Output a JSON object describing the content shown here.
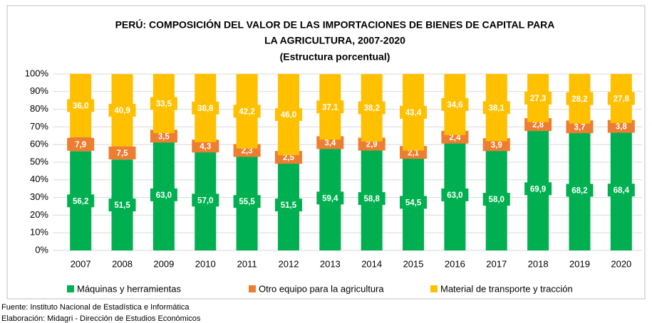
{
  "chart_data": {
    "type": "stacked_bar",
    "title": [
      "PERÚ: COMPOSICIÓN DEL VALOR DE LAS IMPORTACIONES DE BIENES DE CAPITAL PARA",
      "LA AGRICULTURA, 2007-2020"
    ],
    "subtitle": "(Estructura porcentual)",
    "categories": [
      "2007",
      "2008",
      "2009",
      "2010",
      "2011",
      "2012",
      "2013",
      "2014",
      "2015",
      "2016",
      "2017",
      "2018",
      "2019",
      "2020"
    ],
    "series": [
      {
        "name": "Máquinas y herramientas",
        "color": "#00b050",
        "values": [
          56.2,
          51.5,
          63.0,
          57.0,
          55.5,
          51.5,
          59.4,
          58.8,
          54.5,
          63.0,
          58.0,
          69.9,
          68.2,
          68.4
        ],
        "value_labels": [
          "56,2",
          "51,5",
          "63,0",
          "57,0",
          "55,5",
          "51,5",
          "59,4",
          "58,8",
          "54,5",
          "63,0",
          "58,0",
          "69,9",
          "68,2",
          "68,4"
        ]
      },
      {
        "name": "Otro equipo para la agricultura",
        "color": "#ed7d31",
        "values": [
          7.9,
          7.5,
          3.5,
          4.3,
          2.3,
          2.5,
          3.4,
          2.9,
          2.1,
          2.4,
          3.9,
          2.8,
          3.7,
          3.8
        ],
        "value_labels": [
          "7,9",
          "7,5",
          "3,5",
          "4,3",
          "2,3",
          "2,5",
          "3,4",
          "2,9",
          "2,1",
          "2,4",
          "3,9",
          "2,8",
          "3,7",
          "3,8"
        ]
      },
      {
        "name": "Material de transporte y tracción",
        "color": "#ffc000",
        "values": [
          36.0,
          40.9,
          33.5,
          38.8,
          42.2,
          46.0,
          37.1,
          38.2,
          43.4,
          34.6,
          38.1,
          27.3,
          28.2,
          27.8
        ],
        "value_labels": [
          "36,0",
          "40,9",
          "33,5",
          "38,8",
          "42,2",
          "46,0",
          "37,1",
          "38,2",
          "43,4",
          "34,6",
          "38,1",
          "27,3",
          "28,2",
          "27,8"
        ]
      }
    ],
    "ylim": [
      0,
      100
    ],
    "yticks": [
      {
        "value": 0,
        "label": "0%"
      },
      {
        "value": 10,
        "label": "10%"
      },
      {
        "value": 20,
        "label": "20%"
      },
      {
        "value": 30,
        "label": "30%"
      },
      {
        "value": 40,
        "label": "40%"
      },
      {
        "value": 50,
        "label": "50%"
      },
      {
        "value": 60,
        "label": "60%"
      },
      {
        "value": 70,
        "label": "70%"
      },
      {
        "value": 80,
        "label": "80%"
      },
      {
        "value": 90,
        "label": "90%"
      },
      {
        "value": 100,
        "label": "100%"
      }
    ],
    "grid": true,
    "legend": "bottom"
  },
  "source": [
    "Fuente: Instituto Nacional de Estadística e Informática",
    "Elaboración: Midagri - Dirección de Estudios Económicos"
  ]
}
